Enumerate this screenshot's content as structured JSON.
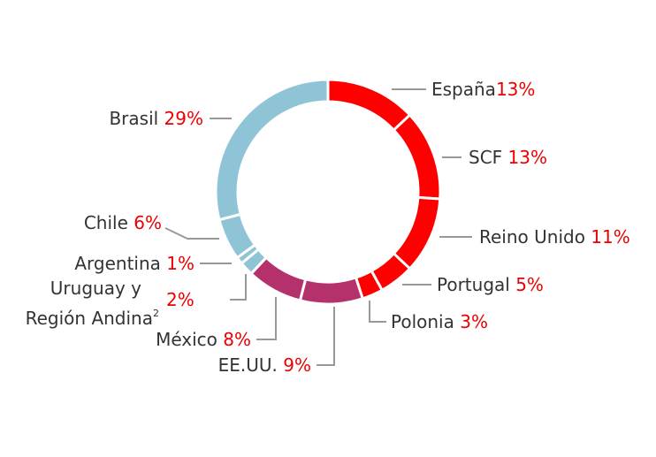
{
  "chart_data": {
    "type": "pie",
    "donut": true,
    "legend": "none",
    "slices": [
      {
        "name": "España",
        "value": 13,
        "value_label": "13%",
        "color": "#ff0000"
      },
      {
        "name": "SCF",
        "value": 13,
        "value_label": "13%",
        "color": "#ff0000"
      },
      {
        "name": "Reino Unido",
        "value": 11,
        "value_label": "11%",
        "color": "#ff0000"
      },
      {
        "name": "Portugal",
        "value": 5,
        "value_label": "5%",
        "color": "#ff0000"
      },
      {
        "name": "Polonia",
        "value": 3,
        "value_label": "3%",
        "color": "#ff0000"
      },
      {
        "name": "EE.UU.",
        "value": 9,
        "value_label": "9%",
        "color": "#b5316b"
      },
      {
        "name": "México",
        "value": 8,
        "value_label": "8%",
        "color": "#b5316b"
      },
      {
        "name": "Uruguay y Región Andina",
        "name_line1": "Uruguay y",
        "name_line2": "Región Andina",
        "footnote": "2",
        "value": 2,
        "value_label": "2%",
        "color": "#8fc4d6"
      },
      {
        "name": "Argentina",
        "value": 1,
        "value_label": "1%",
        "color": "#8fc4d6"
      },
      {
        "name": "Chile",
        "value": 6,
        "value_label": "6%",
        "color": "#8fc4d6"
      },
      {
        "name": "Brasil",
        "value": 29,
        "value_label": "29%",
        "color": "#8fc4d6"
      }
    ],
    "colors": {
      "text": "#333333",
      "percent": "#ec0000",
      "leader": "#999999"
    }
  }
}
